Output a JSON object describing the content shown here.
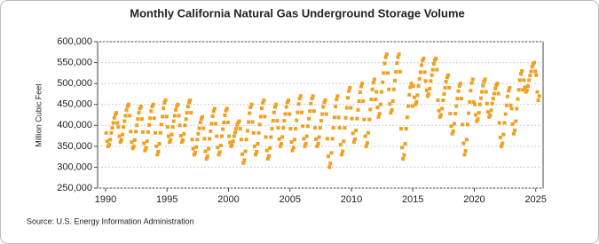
{
  "chart_data": {
    "type": "scatter",
    "title": "Monthly California Natural Gas Underground Storage Volume",
    "y_label": "Million Cubic Feet",
    "source": "Source: U.S. Energy Information Administration",
    "color": "#f0a020",
    "grid": true,
    "xlim": [
      1989.35,
      2025.6
    ],
    "ylim": [
      250000,
      600000
    ],
    "xticks": [
      1990,
      1995,
      2000,
      2005,
      2010,
      2015,
      2020,
      2025
    ],
    "yticks": [
      {
        "value": 250000,
        "label": "250,000"
      },
      {
        "value": 300000,
        "label": "300,000"
      },
      {
        "value": 350000,
        "label": "350,000"
      },
      {
        "value": 400000,
        "label": "400,000"
      },
      {
        "value": 450000,
        "label": "450,000"
      },
      {
        "value": 500000,
        "label": "500,000"
      },
      {
        "value": 550000,
        "label": "550,000"
      },
      {
        "value": 600000,
        "label": "600,000"
      }
    ],
    "x": [
      1990.042,
      1990.125,
      1990.208,
      1990.292,
      1990.375,
      1990.458,
      1990.542,
      1990.625,
      1990.708,
      1990.792,
      1990.875,
      1990.958,
      1991.042,
      1991.125,
      1991.208,
      1991.292,
      1991.375,
      1991.458,
      1991.542,
      1991.625,
      1991.708,
      1991.792,
      1991.875,
      1991.958,
      1992.042,
      1992.125,
      1992.208,
      1992.292,
      1992.375,
      1992.458,
      1992.542,
      1992.625,
      1992.708,
      1992.792,
      1992.875,
      1992.958,
      1993.042,
      1993.125,
      1993.208,
      1993.292,
      1993.375,
      1993.458,
      1993.542,
      1993.625,
      1993.708,
      1993.792,
      1993.875,
      1993.958,
      1994.042,
      1994.125,
      1994.208,
      1994.292,
      1994.375,
      1994.458,
      1994.542,
      1994.625,
      1994.708,
      1994.792,
      1994.875,
      1994.958,
      1995.042,
      1995.125,
      1995.208,
      1995.292,
      1995.375,
      1995.458,
      1995.542,
      1995.625,
      1995.708,
      1995.792,
      1995.875,
      1995.958,
      1996.042,
      1996.125,
      1996.208,
      1996.292,
      1996.375,
      1996.458,
      1996.542,
      1996.625,
      1996.708,
      1996.792,
      1996.875,
      1996.958,
      1997.042,
      1997.125,
      1997.208,
      1997.292,
      1997.375,
      1997.458,
      1997.542,
      1997.625,
      1997.708,
      1997.792,
      1997.875,
      1997.958,
      1998.042,
      1998.125,
      1998.208,
      1998.292,
      1998.375,
      1998.458,
      1998.542,
      1998.625,
      1998.708,
      1998.792,
      1998.875,
      1998.958,
      1999.042,
      1999.125,
      1999.208,
      1999.292,
      1999.375,
      1999.458,
      1999.542,
      1999.625,
      1999.708,
      1999.792,
      1999.875,
      1999.958,
      2000.042,
      2000.125,
      2000.208,
      2000.292,
      2000.375,
      2000.458,
      2000.542,
      2000.625,
      2000.708,
      2000.792,
      2000.875,
      2000.958,
      2001.042,
      2001.125,
      2001.208,
      2001.292,
      2001.375,
      2001.458,
      2001.542,
      2001.625,
      2001.708,
      2001.792,
      2001.875,
      2001.958,
      2002.042,
      2002.125,
      2002.208,
      2002.292,
      2002.375,
      2002.458,
      2002.542,
      2002.625,
      2002.708,
      2002.792,
      2002.875,
      2002.958,
      2003.042,
      2003.125,
      2003.208,
      2003.292,
      2003.375,
      2003.458,
      2003.542,
      2003.625,
      2003.708,
      2003.792,
      2003.875,
      2003.958,
      2004.042,
      2004.125,
      2004.208,
      2004.292,
      2004.375,
      2004.458,
      2004.542,
      2004.625,
      2004.708,
      2004.792,
      2004.875,
      2004.958,
      2005.042,
      2005.125,
      2005.208,
      2005.292,
      2005.375,
      2005.458,
      2005.542,
      2005.625,
      2005.708,
      2005.792,
      2005.875,
      2005.958,
      2006.042,
      2006.125,
      2006.208,
      2006.292,
      2006.375,
      2006.458,
      2006.542,
      2006.625,
      2006.708,
      2006.792,
      2006.875,
      2006.958,
      2007.042,
      2007.125,
      2007.208,
      2007.292,
      2007.375,
      2007.458,
      2007.542,
      2007.625,
      2007.708,
      2007.792,
      2007.875,
      2007.958,
      2008.042,
      2008.125,
      2008.208,
      2008.292,
      2008.375,
      2008.458,
      2008.542,
      2008.625,
      2008.708,
      2008.792,
      2008.875,
      2008.958,
      2009.042,
      2009.125,
      2009.208,
      2009.292,
      2009.375,
      2009.458,
      2009.542,
      2009.625,
      2009.708,
      2009.792,
      2009.875,
      2009.958,
      2010.042,
      2010.125,
      2010.208,
      2010.292,
      2010.375,
      2010.458,
      2010.542,
      2010.625,
      2010.708,
      2010.792,
      2010.875,
      2010.958,
      2011.042,
      2011.125,
      2011.208,
      2011.292,
      2011.375,
      2011.458,
      2011.542,
      2011.625,
      2011.708,
      2011.792,
      2011.875,
      2011.958,
      2012.042,
      2012.125,
      2012.208,
      2012.292,
      2012.375,
      2012.458,
      2012.542,
      2012.625,
      2012.708,
      2012.792,
      2012.875,
      2012.958,
      2013.042,
      2013.125,
      2013.208,
      2013.292,
      2013.375,
      2013.458,
      2013.542,
      2013.625,
      2013.708,
      2013.792,
      2013.875,
      2013.958,
      2014.042,
      2014.125,
      2014.208,
      2014.292,
      2014.375,
      2014.458,
      2014.542,
      2014.625,
      2014.708,
      2014.792,
      2014.875,
      2014.958,
      2015.042,
      2015.125,
      2015.208,
      2015.292,
      2015.375,
      2015.458,
      2015.542,
      2015.625,
      2015.708,
      2015.792,
      2015.875,
      2015.958,
      2016.042,
      2016.125,
      2016.208,
      2016.292,
      2016.375,
      2016.458,
      2016.542,
      2016.625,
      2016.708,
      2016.792,
      2016.875,
      2016.958,
      2017.042,
      2017.125,
      2017.208,
      2017.292,
      2017.375,
      2017.458,
      2017.542,
      2017.625,
      2017.708,
      2017.792,
      2017.875,
      2017.958,
      2018.042,
      2018.125,
      2018.208,
      2018.292,
      2018.375,
      2018.458,
      2018.542,
      2018.625,
      2018.708,
      2018.792,
      2018.875,
      2018.958,
      2019.042,
      2019.125,
      2019.208,
      2019.292,
      2019.375,
      2019.458,
      2019.542,
      2019.625,
      2019.708,
      2019.792,
      2019.875,
      2019.958,
      2020.042,
      2020.125,
      2020.208,
      2020.292,
      2020.375,
      2020.458,
      2020.542,
      2020.625,
      2020.708,
      2020.792,
      2020.875,
      2020.958,
      2021.042,
      2021.125,
      2021.208,
      2021.292,
      2021.375,
      2021.458,
      2021.542,
      2021.625,
      2021.708,
      2021.792,
      2021.875,
      2021.958,
      2022.042,
      2022.125,
      2022.208,
      2022.292,
      2022.375,
      2022.458,
      2022.542,
      2022.625,
      2022.708,
      2022.792,
      2022.875,
      2022.958,
      2023.042,
      2023.125,
      2023.208,
      2023.292,
      2023.375,
      2023.458,
      2023.542,
      2023.625,
      2023.708,
      2023.792,
      2023.875,
      2023.958,
      2024.042,
      2024.125,
      2024.208,
      2024.292,
      2024.375,
      2024.458,
      2024.542,
      2024.625,
      2024.708,
      2024.792,
      2024.875,
      2024.958,
      2025.042,
      2025.125,
      2025.208,
      2025.292
    ],
    "values": [
      382000,
      362000,
      350000,
      354000,
      366000,
      382000,
      394000,
      406000,
      418000,
      426000,
      430000,
      406000,
      396000,
      374000,
      360000,
      365000,
      378000,
      396000,
      410000,
      423000,
      437000,
      446000,
      450000,
      423000,
      385000,
      360000,
      345000,
      350000,
      365000,
      385000,
      400000,
      415000,
      430000,
      440000,
      445000,
      415000,
      384000,
      357000,
      340000,
      346000,
      362000,
      384000,
      401000,
      417000,
      434000,
      445000,
      450000,
      417000,
      382000,
      350000,
      330000,
      337000,
      356000,
      382000,
      402000,
      421000,
      441000,
      454000,
      460000,
      421000,
      396000,
      374000,
      360000,
      365000,
      378000,
      396000,
      410000,
      423000,
      437000,
      446000,
      450000,
      423000,
      400000,
      375000,
      360000,
      365000,
      380000,
      400000,
      415000,
      430000,
      445000,
      455000,
      460000,
      430000,
      366000,
      344000,
      330000,
      335000,
      348000,
      366000,
      380000,
      393000,
      407000,
      416000,
      420000,
      393000,
      368000,
      338000,
      320000,
      326000,
      344000,
      368000,
      386000,
      404000,
      422000,
      434000,
      440000,
      404000,
      374000,
      347000,
      330000,
      336000,
      352000,
      374000,
      391000,
      407000,
      424000,
      435000,
      440000,
      407000,
      374000,
      359000,
      350000,
      353000,
      362000,
      374000,
      383000,
      392000,
      401000,
      407000,
      410000,
      392000,
      366000,
      331000,
      310000,
      317000,
      338000,
      366000,
      387000,
      408000,
      429000,
      443000,
      450000,
      408000,
      382000,
      350000,
      330000,
      337000,
      356000,
      382000,
      402000,
      421000,
      441000,
      454000,
      460000,
      421000,
      372000,
      340000,
      320000,
      327000,
      346000,
      372000,
      392000,
      411000,
      431000,
      444000,
      450000,
      411000,
      394000,
      367000,
      350000,
      356000,
      372000,
      394000,
      411000,
      427000,
      444000,
      455000,
      460000,
      427000,
      392000,
      360000,
      340000,
      347000,
      366000,
      392000,
      412000,
      431000,
      451000,
      464000,
      470000,
      431000,
      398000,
      368000,
      350000,
      356000,
      374000,
      398000,
      416000,
      434000,
      452000,
      464000,
      470000,
      434000,
      394000,
      367000,
      350000,
      356000,
      372000,
      394000,
      411000,
      427000,
      444000,
      455000,
      460000,
      427000,
      368000,
      326000,
      300000,
      309000,
      334000,
      368000,
      394000,
      419000,
      445000,
      462000,
      470000,
      419000,
      394000,
      354000,
      330000,
      338000,
      362000,
      394000,
      418000,
      442000,
      466000,
      482000,
      490000,
      442000,
      416000,
      381000,
      360000,
      367000,
      388000,
      416000,
      437000,
      458000,
      479000,
      493000,
      500000,
      458000,
      414000,
      374000,
      350000,
      358000,
      382000,
      414000,
      438000,
      462000,
      486000,
      502000,
      510000,
      462000,
      480000,
      443000,
      420000,
      428000,
      450000,
      480000,
      503000,
      525000,
      548000,
      563000,
      570000,
      525000,
      486000,
      451000,
      430000,
      437000,
      458000,
      486000,
      507000,
      528000,
      549000,
      563000,
      570000,
      528000,
      392000,
      347000,
      320000,
      329000,
      356000,
      392000,
      419000,
      446000,
      473000,
      491000,
      500000,
      446000,
      494000,
      467000,
      450000,
      456000,
      472000,
      494000,
      511000,
      527000,
      544000,
      555000,
      560000,
      527000,
      506000,
      484000,
      470000,
      475000,
      488000,
      506000,
      520000,
      533000,
      547000,
      556000,
      560000,
      533000,
      460000,
      435000,
      420000,
      425000,
      440000,
      460000,
      475000,
      490000,
      505000,
      515000,
      520000,
      490000,
      428000,
      398000,
      380000,
      386000,
      404000,
      428000,
      446000,
      464000,
      482000,
      494000,
      500000,
      464000,
      402000,
      357000,
      330000,
      339000,
      366000,
      402000,
      429000,
      456000,
      483000,
      501000,
      510000,
      456000,
      450000,
      425000,
      410000,
      415000,
      430000,
      450000,
      465000,
      480000,
      495000,
      505000,
      510000,
      480000,
      452000,
      432000,
      420000,
      424000,
      436000,
      452000,
      464000,
      476000,
      488000,
      496000,
      500000,
      476000,
      406000,
      371000,
      350000,
      357000,
      378000,
      406000,
      427000,
      448000,
      469000,
      483000,
      490000,
      448000,
      440000,
      403000,
      380000,
      388000,
      410000,
      440000,
      463000,
      485000,
      508000,
      523000,
      530000,
      485000,
      508000,
      491000,
      480000,
      484000,
      494000,
      508000,
      519000,
      529000,
      540000,
      547000,
      550000,
      529000,
      520000,
      480000,
      460000,
      470000
    ]
  }
}
